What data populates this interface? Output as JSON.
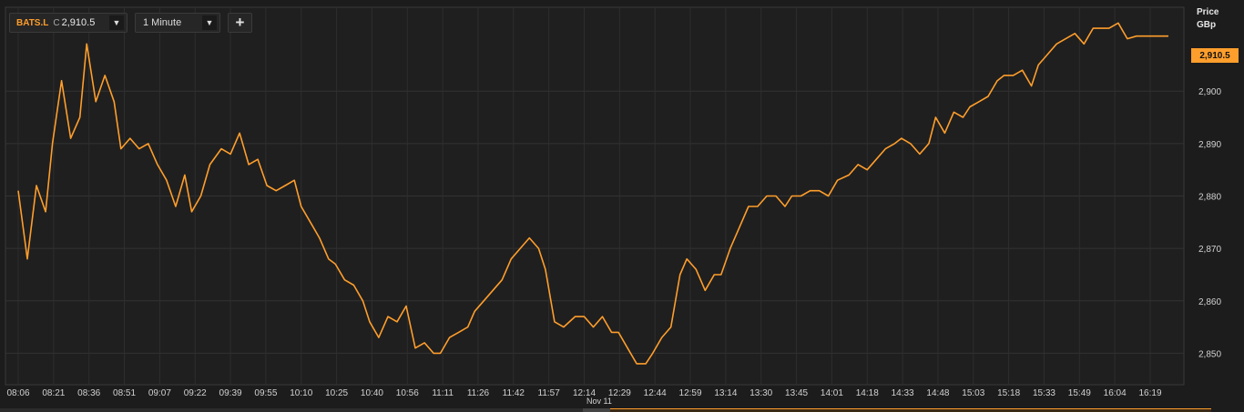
{
  "toolbar": {
    "symbol": "BATS.L",
    "close_flag": "C",
    "close_value": "2,910.5",
    "interval": "1 Minute",
    "add_label": "+",
    "dropdown_glyph": "▼"
  },
  "axis": {
    "title_line1": "Price",
    "title_line2": "GBp"
  },
  "last_price_label": "2,910.5",
  "date_label": "Nov 11",
  "colors": {
    "line": "#ff9e2c",
    "background": "#1c1c1c",
    "grid": "#333333"
  },
  "chart_data": {
    "type": "line",
    "ylim": [
      2844,
      2916
    ],
    "y_ticks": [
      2850,
      2860,
      2870,
      2880,
      2890,
      2900
    ],
    "y_tick_labels": [
      "2,850",
      "2,860",
      "2,870",
      "2,880",
      "2,890",
      "2,900"
    ],
    "x_tick_labels": [
      "08:06",
      "08:21",
      "08:36",
      "08:51",
      "09:07",
      "09:22",
      "09:39",
      "09:55",
      "10:10",
      "10:25",
      "10:40",
      "10:56",
      "11:11",
      "11:26",
      "11:42",
      "11:57",
      "12:14",
      "12:29",
      "12:44",
      "12:59",
      "13:14",
      "13:30",
      "13:45",
      "14:01",
      "14:18",
      "14:33",
      "14:48",
      "15:03",
      "15:18",
      "15:33",
      "15:49",
      "16:04",
      "16:19"
    ],
    "grid": true,
    "last_value": 2910.5,
    "series": [
      {
        "x": [
          "08:06",
          "08:10",
          "08:14",
          "08:18",
          "08:21",
          "08:25",
          "08:29",
          "08:33",
          "08:36",
          "08:40",
          "08:44",
          "08:48",
          "08:51",
          "08:55",
          "08:59",
          "09:03",
          "09:07",
          "09:11",
          "09:15",
          "09:19",
          "09:22",
          "09:26",
          "09:30",
          "09:35",
          "09:39",
          "09:43",
          "09:47",
          "09:51",
          "09:55",
          "09:59",
          "10:03",
          "10:07",
          "10:10",
          "10:14",
          "10:18",
          "10:22",
          "10:25",
          "10:29",
          "10:33",
          "10:37",
          "10:40",
          "10:44",
          "10:48",
          "10:52",
          "10:56",
          "11:00",
          "11:04",
          "11:08",
          "11:11",
          "11:15",
          "11:19",
          "11:23",
          "11:26",
          "11:30",
          "11:34",
          "11:38",
          "11:42",
          "11:46",
          "11:50",
          "11:54",
          "11:57",
          "12:01",
          "12:05",
          "12:10",
          "12:14",
          "12:18",
          "12:22",
          "12:26",
          "12:29",
          "12:33",
          "12:37",
          "12:41",
          "12:44",
          "12:48",
          "12:52",
          "12:56",
          "12:59",
          "13:03",
          "13:07",
          "13:11",
          "13:14",
          "13:18",
          "13:22",
          "13:26",
          "13:30",
          "13:34",
          "13:38",
          "13:42",
          "13:45",
          "13:49",
          "13:53",
          "13:57",
          "14:01",
          "14:05",
          "14:10",
          "14:14",
          "14:18",
          "14:22",
          "14:26",
          "14:30",
          "14:33",
          "14:37",
          "14:41",
          "14:45",
          "14:48",
          "14:52",
          "14:56",
          "15:00",
          "15:03",
          "15:07",
          "15:11",
          "15:15",
          "15:18",
          "15:22",
          "15:26",
          "15:30",
          "15:33",
          "15:37",
          "15:41",
          "15:45",
          "15:49",
          "15:53",
          "15:57",
          "16:01",
          "16:04",
          "16:08",
          "16:12",
          "16:16",
          "16:19",
          "16:23",
          "16:27",
          "16:30"
        ],
        "values": [
          2881,
          2868,
          2882,
          2877,
          2890,
          2902,
          2891,
          2895,
          2909,
          2898,
          2903,
          2898,
          2889,
          2891,
          2889,
          2890,
          2886,
          2883,
          2878,
          2884,
          2877,
          2880,
          2886,
          2889,
          2888,
          2892,
          2886,
          2887,
          2882,
          2881,
          2882,
          2883,
          2878,
          2875,
          2872,
          2868,
          2867,
          2864,
          2863,
          2860,
          2856,
          2853,
          2857,
          2856,
          2859,
          2851,
          2852,
          2850,
          2850,
          2853,
          2854,
          2855,
          2858,
          2860,
          2862,
          2864,
          2868,
          2870,
          2872,
          2870,
          2866,
          2856,
          2855,
          2857,
          2857,
          2855,
          2857,
          2854,
          2854,
          2851,
          2848,
          2848,
          2850,
          2853,
          2855,
          2865,
          2868,
          2866,
          2862,
          2865,
          2865,
          2870,
          2874,
          2878,
          2878,
          2880,
          2880,
          2878,
          2880,
          2880,
          2881,
          2881,
          2880,
          2883,
          2884,
          2886,
          2885,
          2887,
          2889,
          2890,
          2891,
          2890,
          2888,
          2890,
          2895,
          2892,
          2896,
          2895,
          2897,
          2898,
          2899,
          2902,
          2903,
          2903,
          2904,
          2901,
          2905,
          2907,
          2909,
          2910,
          2911,
          2909,
          2912,
          2912,
          2912,
          2913,
          2910,
          2910.5,
          2910.5,
          2910.5,
          2910.5,
          2910.5
        ]
      }
    ]
  }
}
